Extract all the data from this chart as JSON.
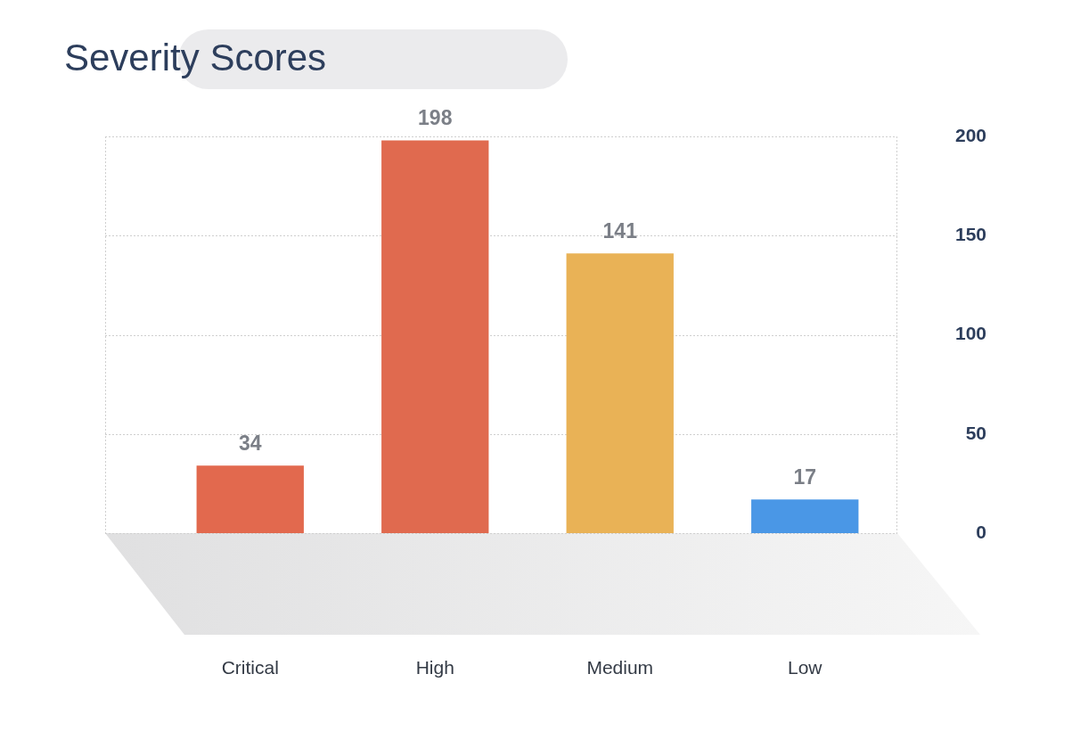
{
  "chart_data": {
    "type": "bar",
    "title": "Severity Scores",
    "categories": [
      "Critical",
      "High",
      "Medium",
      "Low"
    ],
    "values": [
      34,
      198,
      141,
      17
    ],
    "colors": [
      "#e2694e",
      "#e06a4f",
      "#e9b256",
      "#4a97e6"
    ],
    "ylim": [
      0,
      200
    ],
    "yticks": [
      0,
      50,
      100,
      150,
      200
    ],
    "grid": "y",
    "data_labels": true
  }
}
